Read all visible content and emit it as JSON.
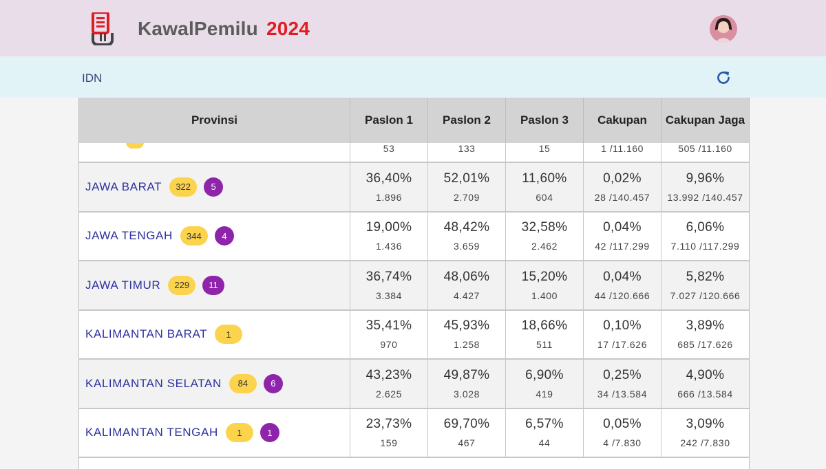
{
  "header": {
    "brand": "KawalPemilu",
    "year": "2024",
    "logo_icon": "ballot-box-icon",
    "avatar_icon": "user-avatar-icon"
  },
  "subheader": {
    "location": "IDN",
    "refresh_icon": "refresh-icon"
  },
  "table": {
    "columns": [
      "Provinsi",
      "Paslon 1",
      "Paslon 2",
      "Paslon 3",
      "Cakupan",
      "Cakupan Jaga"
    ],
    "partial_row": [
      "53",
      "133",
      "15",
      "1 /11.160",
      "505 /11.160"
    ],
    "rows": [
      {
        "name": "JAWA BARAT",
        "badge_yellow": "322",
        "badge_purple": "5",
        "p1_pct": "36,40%",
        "p1": "1.896",
        "p2_pct": "52,01%",
        "p2": "2.709",
        "p3_pct": "11,60%",
        "p3": "604",
        "cak_pct": "0,02%",
        "cak": "28 /140.457",
        "jaga_pct": "9,96%",
        "jaga": "13.992 /140.457"
      },
      {
        "name": "JAWA TENGAH",
        "badge_yellow": "344",
        "badge_purple": "4",
        "p1_pct": "19,00%",
        "p1": "1.436",
        "p2_pct": "48,42%",
        "p2": "3.659",
        "p3_pct": "32,58%",
        "p3": "2.462",
        "cak_pct": "0,04%",
        "cak": "42 /117.299",
        "jaga_pct": "6,06%",
        "jaga": "7.110 /117.299"
      },
      {
        "name": "JAWA TIMUR",
        "badge_yellow": "229",
        "badge_purple": "11",
        "p1_pct": "36,74%",
        "p1": "3.384",
        "p2_pct": "48,06%",
        "p2": "4.427",
        "p3_pct": "15,20%",
        "p3": "1.400",
        "cak_pct": "0,04%",
        "cak": "44 /120.666",
        "jaga_pct": "5,82%",
        "jaga": "7.027 /120.666"
      },
      {
        "name": "KALIMANTAN BARAT",
        "badge_yellow": "1",
        "badge_purple": "",
        "p1_pct": "35,41%",
        "p1": "970",
        "p2_pct": "45,93%",
        "p2": "1.258",
        "p3_pct": "18,66%",
        "p3": "511",
        "cak_pct": "0,10%",
        "cak": "17 /17.626",
        "jaga_pct": "3,89%",
        "jaga": "685 /17.626"
      },
      {
        "name": "KALIMANTAN SELATAN",
        "badge_yellow": "84",
        "badge_purple": "6",
        "p1_pct": "43,23%",
        "p1": "2.625",
        "p2_pct": "49,87%",
        "p2": "3.028",
        "p3_pct": "6,90%",
        "p3": "419",
        "cak_pct": "0,25%",
        "cak": "34 /13.584",
        "jaga_pct": "4,90%",
        "jaga": "666 /13.584"
      },
      {
        "name": "KALIMANTAN TENGAH",
        "badge_yellow": "1",
        "badge_purple": "1",
        "p1_pct": "23,73%",
        "p1": "159",
        "p2_pct": "69,70%",
        "p2": "467",
        "p3_pct": "6,57%",
        "p3": "44",
        "cak_pct": "0,05%",
        "cak": "4 /7.830",
        "jaga_pct": "3,09%",
        "jaga": "242 /7.830"
      }
    ]
  },
  "colors": {
    "topbar_bg": "#e8dde9",
    "subbar_bg": "#e2f3f7",
    "brand_year": "#e11d24",
    "link": "#2c2f9e",
    "badge_yellow": "#fcd34d",
    "badge_purple": "#8e24aa"
  }
}
